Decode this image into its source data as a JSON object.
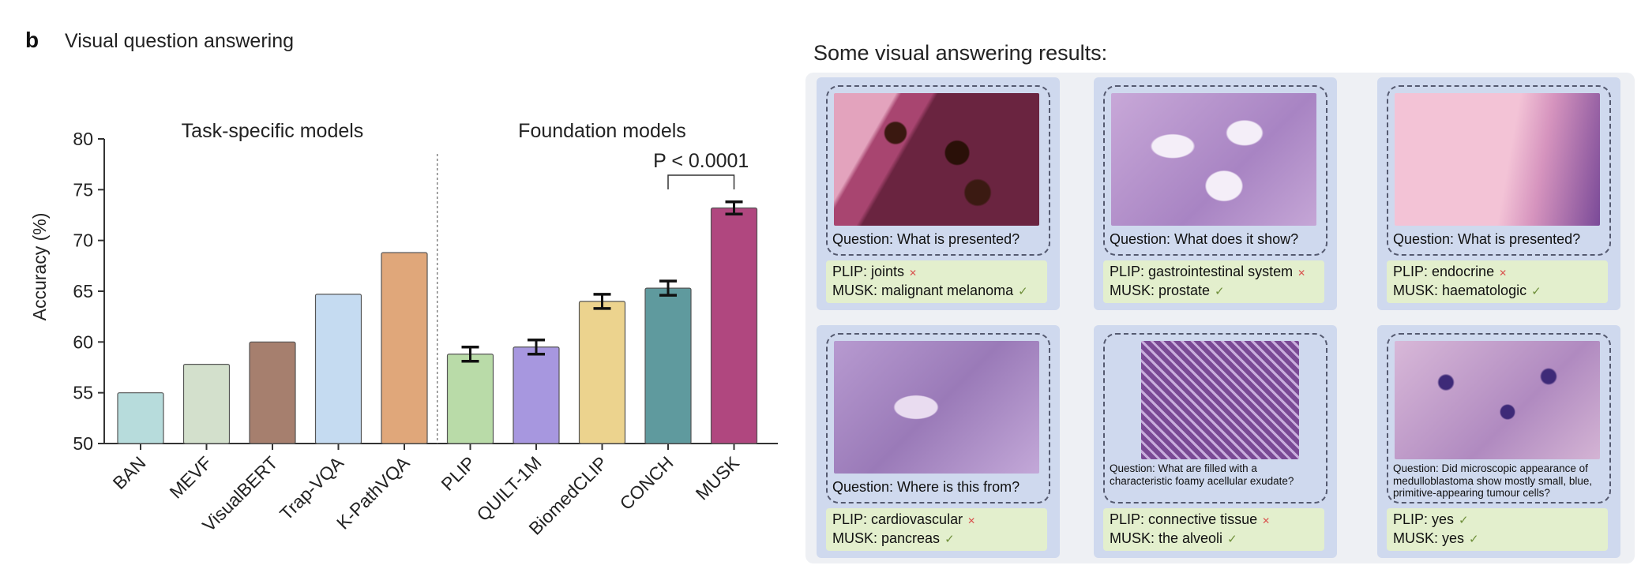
{
  "panel": {
    "letter": "b",
    "title": "Visual question answering"
  },
  "chart_data": {
    "type": "bar",
    "ylabel": "Accuracy (%)",
    "ylim": [
      50,
      80
    ],
    "yticks": [
      50,
      55,
      60,
      65,
      70,
      75,
      80
    ],
    "groups": [
      {
        "label": "Task-specific models",
        "categories": [
          "BAN",
          "MEVF",
          "VisualBERT",
          "Trap-VQA",
          "K-PathVQA"
        ]
      },
      {
        "label": "Foundation models",
        "categories": [
          "PLIP",
          "QUILT-1M",
          "BiomedCLIP",
          "CONCH",
          "MUSK"
        ]
      }
    ],
    "categories": [
      "BAN",
      "MEVF",
      "VisualBERT",
      "Trap-VQA",
      "K-PathVQA",
      "PLIP",
      "QUILT-1M",
      "BiomedCLIP",
      "CONCH",
      "MUSK"
    ],
    "values": [
      55.0,
      57.8,
      60.0,
      64.7,
      68.8,
      58.8,
      59.5,
      64.0,
      65.3,
      73.2
    ],
    "error": [
      null,
      null,
      null,
      null,
      null,
      0.7,
      0.7,
      0.7,
      0.7,
      0.6
    ],
    "colors": [
      "#b7dcdc",
      "#d3e0cc",
      "#a67f6e",
      "#c5dbf1",
      "#e0a77a",
      "#b9dba8",
      "#a797df",
      "#ecd38e",
      "#5f9a9e",
      "#b0477f"
    ],
    "annotation": {
      "text": "P < 0.0001",
      "between": [
        "CONCH",
        "MUSK"
      ]
    },
    "grid": false,
    "legend": "none"
  },
  "gallery": {
    "title": "Some visual answering results:",
    "cards": [
      {
        "question": "Question: What is presented?",
        "plip": "PLIP: joints",
        "plip_correct": false,
        "musk": "MUSK: malignant melanoma",
        "musk_correct": true,
        "tissue": "tissue-1"
      },
      {
        "question": "Question: What does it show?",
        "plip": "PLIP: gastrointestinal system",
        "plip_correct": false,
        "musk": "MUSK: prostate",
        "musk_correct": true,
        "tissue": "tissue-2"
      },
      {
        "question": "Question: What is presented?",
        "plip": "PLIP: endocrine",
        "plip_correct": false,
        "musk": "MUSK: haematologic",
        "musk_correct": true,
        "tissue": "tissue-3"
      },
      {
        "question": "Question: Where is this from?",
        "plip": "PLIP: cardiovascular",
        "plip_correct": false,
        "musk": "MUSK: pancreas",
        "musk_correct": true,
        "tissue": "tissue-4"
      },
      {
        "question": "Question: What are filled with a characteristic foamy acellular exudate?",
        "plip": "PLIP: connective tissue",
        "plip_correct": false,
        "musk": "MUSK: the alveoli",
        "musk_correct": true,
        "tissue": "tissue-5"
      },
      {
        "question": "Question: Did microscopic appearance of medulloblastoma show mostly small, blue, primitive-appearing tumour cells?",
        "plip": "PLIP: yes",
        "plip_correct": true,
        "musk": "MUSK: yes",
        "musk_correct": true,
        "tissue": "tissue-6"
      }
    ],
    "icons": {
      "wrong": "cross-icon",
      "right": "check-icon"
    }
  }
}
